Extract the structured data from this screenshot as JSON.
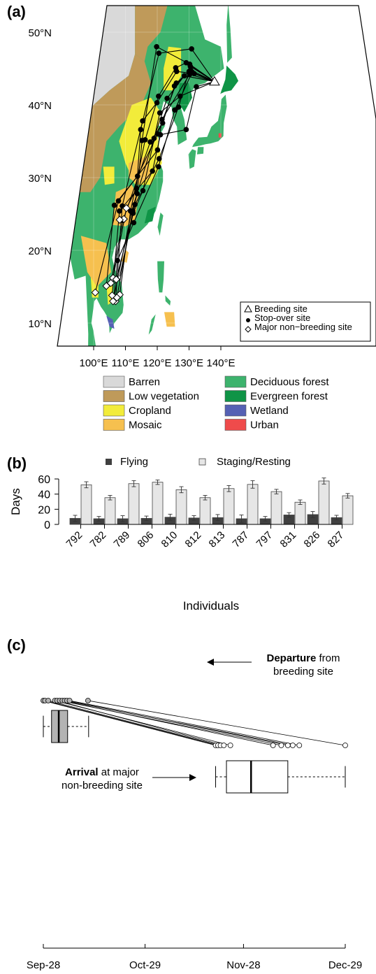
{
  "panel_a": {
    "label": "(a)",
    "lat_ticks": [
      {
        "label": "10°N",
        "lat": 10
      },
      {
        "label": "20°N",
        "lat": 20
      },
      {
        "label": "30°N",
        "lat": 30
      },
      {
        "label": "40°N",
        "lat": 40
      },
      {
        "label": "50°N",
        "lat": 50
      }
    ],
    "lon_ticks": [
      {
        "label": "100°E",
        "lon": 100
      },
      {
        "label": "110°E",
        "lon": 110
      },
      {
        "label": "120°E",
        "lon": 120
      },
      {
        "label": "130°E",
        "lon": 130
      },
      {
        "label": "140°E",
        "lon": 140
      }
    ],
    "map_legend": [
      "Breeding site",
      "Stop-over site",
      "Major non−breeding site"
    ],
    "landcover_legend": [
      {
        "label": "Barren",
        "color": "#d9d9d9"
      },
      {
        "label": "Low vegetation",
        "color": "#bf9a5a"
      },
      {
        "label": "Cropland",
        "color": "#f2ec3a"
      },
      {
        "label": "Mosaic",
        "color": "#f6c04f"
      },
      {
        "label": "Deciduous forest",
        "color": "#3db36d"
      },
      {
        "label": "Evergreen forest",
        "color": "#0f9446"
      },
      {
        "label": "Wetland",
        "color": "#5561b4"
      },
      {
        "label": "Urban",
        "color": "#ef4b4b"
      }
    ],
    "breeding_site": {
      "lon": 138.0,
      "lat": 43.2
    },
    "tracks": [
      [
        [
          138,
          43.2
        ],
        [
          130.8,
          47.7
        ],
        [
          120.5,
          47.1
        ],
        [
          114.8,
          36.6
        ],
        [
          113.5,
          28.5
        ],
        [
          110.3,
          25.8
        ],
        [
          106.1,
          16.2
        ]
      ],
      [
        [
          138,
          43.2
        ],
        [
          130.2,
          45.6
        ],
        [
          119.8,
          48.0
        ],
        [
          115.2,
          35.1
        ],
        [
          113.7,
          27.8
        ],
        [
          112.3,
          25.4
        ],
        [
          107.3,
          13.5
        ]
      ],
      [
        [
          138,
          43.2
        ],
        [
          129.1,
          45.8
        ],
        [
          125.8,
          45.1
        ],
        [
          120.4,
          41.2
        ],
        [
          116.2,
          35.2
        ],
        [
          111.6,
          25.4
        ],
        [
          108.2,
          13.9
        ]
      ],
      [
        [
          138,
          43.2
        ],
        [
          131.6,
          44.3
        ],
        [
          126.1,
          44.6
        ],
        [
          119.9,
          40.3
        ],
        [
          115.4,
          37.8
        ],
        [
          109.0,
          26.1
        ],
        [
          106.9,
          13.0
        ]
      ],
      [
        [
          138,
          43.2
        ],
        [
          130.0,
          44.6
        ],
        [
          125.4,
          42.6
        ],
        [
          121.7,
          37.5
        ],
        [
          117.8,
          34.9
        ],
        [
          109.2,
          24.1
        ],
        [
          105.4,
          15.5
        ]
      ],
      [
        [
          138,
          43.2
        ],
        [
          130.5,
          44.8
        ],
        [
          126.0,
          43.0
        ],
        [
          120.1,
          36.0
        ],
        [
          113.8,
          30.2
        ],
        [
          106.5,
          26.2
        ],
        [
          104.0,
          15.1
        ]
      ],
      [
        [
          138,
          43.2
        ],
        [
          128.5,
          44.0
        ],
        [
          123.1,
          40.9
        ],
        [
          119.0,
          35.4
        ],
        [
          111.9,
          25.3
        ],
        [
          106.1,
          13.0
        ]
      ],
      [
        [
          138,
          43.2
        ],
        [
          130.2,
          44.2
        ],
        [
          121.5,
          38.0
        ],
        [
          120.1,
          33.8
        ],
        [
          107.8,
          26.8
        ],
        [
          100.5,
          14.2
        ]
      ],
      [
        [
          138,
          43.2
        ],
        [
          131.0,
          44.5
        ],
        [
          125.5,
          39.3
        ],
        [
          120.4,
          31.5
        ],
        [
          112.6,
          23.8
        ],
        [
          107.5,
          18.6
        ],
        [
          106.3,
          13.3
        ]
      ],
      [
        [
          138,
          43.2
        ],
        [
          127.2,
          41.2
        ],
        [
          120.8,
          38.9
        ],
        [
          115.5,
          28.2
        ],
        [
          112.4,
          25.1
        ],
        [
          107.1,
          16.0
        ]
      ],
      [
        [
          138,
          43.2
        ],
        [
          132.3,
          42.5
        ],
        [
          129.1,
          36.6
        ],
        [
          121.0,
          35.9
        ],
        [
          118.5,
          30.9
        ],
        [
          108.1,
          25.4
        ],
        [
          105.8,
          13.8
        ]
      ],
      [
        [
          138,
          43.2
        ],
        [
          130.4,
          45.3
        ],
        [
          126.7,
          39.7
        ],
        [
          120.6,
          32.6
        ],
        [
          113.0,
          26.3
        ],
        [
          108.2,
          16.4
        ]
      ]
    ],
    "nonbreeding_sites": [
      [
        110.3,
        25.8
      ],
      [
        109.5,
        24.3
      ],
      [
        108.2,
        24.2
      ],
      [
        106.1,
        16.2
      ],
      [
        107.1,
        16.0
      ],
      [
        105.4,
        15.5
      ],
      [
        104.0,
        15.1
      ],
      [
        100.5,
        14.2
      ],
      [
        108.2,
        13.9
      ],
      [
        106.9,
        13.0
      ],
      [
        106.1,
        13.0
      ],
      [
        107.3,
        13.5
      ],
      [
        105.8,
        13.8
      ]
    ]
  },
  "panel_b": {
    "label": "(b)",
    "legend": [
      "Flying",
      "Staging/Resting"
    ]
  },
  "panel_c": {
    "label": "(c)",
    "departure_bold": "Departure",
    "departure_rest": " from",
    "departure_line2": "breeding site",
    "arrival_bold": "Arrival",
    "arrival_rest": " at major",
    "arrival_line2": "non-breeding site",
    "date_ticks": [
      {
        "label": "Sep-28",
        "day": 0
      },
      {
        "label": "Oct-29",
        "day": 31
      },
      {
        "label": "Nov-28",
        "day": 61
      },
      {
        "label": "Dec-29",
        "day": 92
      }
    ],
    "departure_box": {
      "min": 0,
      "q1": 2.5,
      "median": 4.7,
      "q3": 7.4,
      "max": 13.8
    },
    "arrival_box": {
      "min": 52.5,
      "q1": 55.8,
      "median": 63.3,
      "q3": 74.5,
      "max": 92
    },
    "departure_days": [
      0,
      0.5,
      1.5,
      3.5,
      4.2,
      5.0,
      5.8,
      6.5,
      7.2,
      8.0,
      13.6
    ],
    "arrival_days": [
      52.5,
      53.2,
      54.0,
      55.0,
      57.0,
      70.0,
      72.5,
      74.5,
      76.0,
      78.0,
      92.0
    ]
  },
  "chart_data": [
    {
      "type": "bar",
      "title": "",
      "xlabel": "Individuals",
      "ylabel": "Days",
      "ylim": [
        0,
        60
      ],
      "yticks": [
        0,
        20,
        40,
        60
      ],
      "categories": [
        "792",
        "782",
        "789",
        "806",
        "810",
        "812",
        "813",
        "787",
        "797",
        "831",
        "826",
        "827"
      ],
      "series": [
        {
          "name": "Flying",
          "color": "#404040",
          "values": [
            8,
            7.5,
            7.5,
            8,
            9.5,
            8.5,
            9,
            7.5,
            7.5,
            12.5,
            13,
            9
          ],
          "error": [
            4,
            3,
            4,
            3,
            4,
            3,
            4,
            5,
            3,
            3,
            4,
            3
          ]
        },
        {
          "name": "Staging/Resting",
          "color": "#e6e6e6",
          "values": [
            52.3,
            35.3,
            53.8,
            55.7,
            45.8,
            35.3,
            47.3,
            52.8,
            43.3,
            29.3,
            57.3,
            37.8
          ],
          "error": [
            4,
            3,
            4,
            3,
            4,
            3,
            4,
            5,
            3,
            3,
            4,
            3
          ]
        }
      ]
    },
    {
      "type": "boxplot",
      "title": "",
      "xlabel": "",
      "ylabel": "",
      "x_ticks": [
        "Sep-28",
        "Oct-29",
        "Nov-28",
        "Dec-29"
      ],
      "series": [
        {
          "name": "Departure from breeding site",
          "min": "Sep-28",
          "median": "Oct-03",
          "max": "Oct-12"
        },
        {
          "name": "Arrival at major non-breeding site",
          "min": "Nov-19",
          "median": "Nov-30",
          "max": "Dec-29"
        }
      ]
    }
  ]
}
